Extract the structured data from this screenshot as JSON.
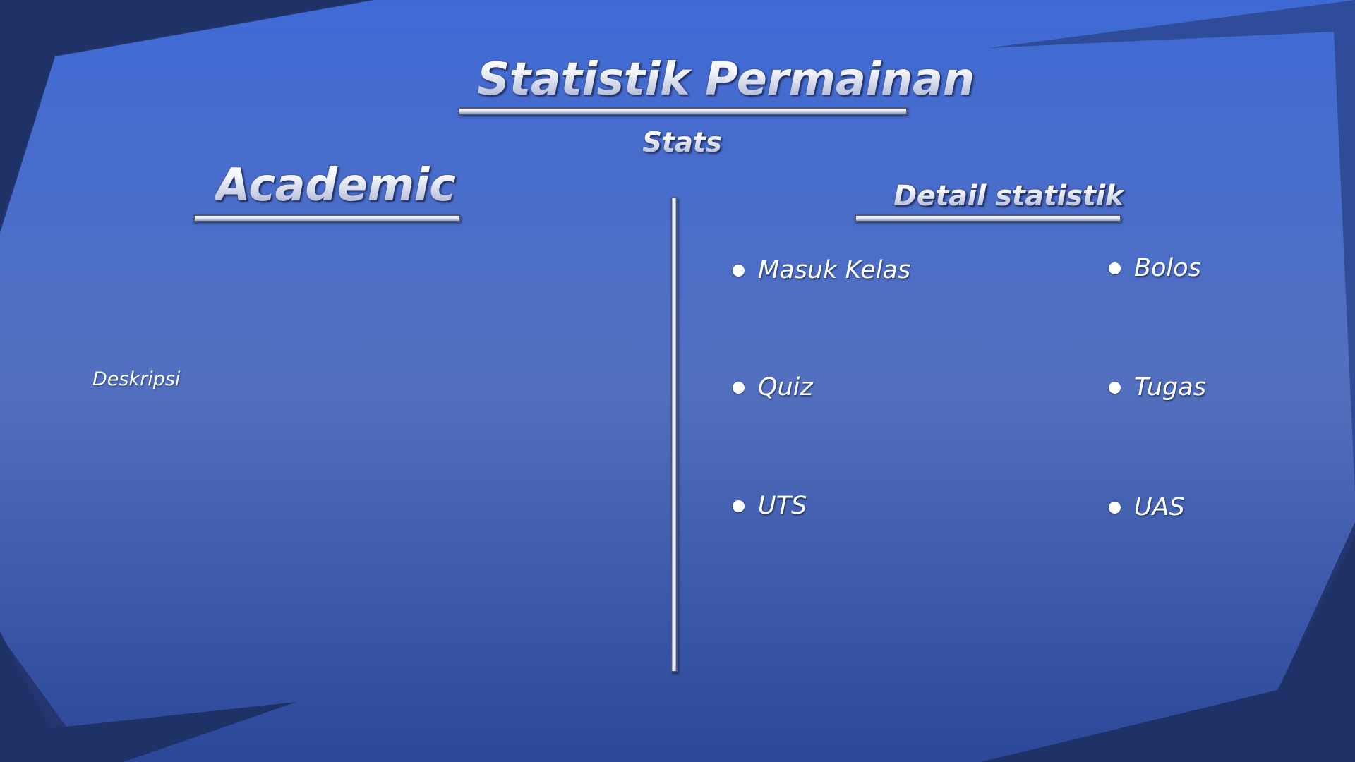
{
  "title": "Statistik Permainan",
  "subtitle": "Stats",
  "academic": {
    "heading": "Academic",
    "description": "Deskripsi"
  },
  "detail": {
    "heading": "Detail statistik",
    "items": [
      "Masuk Kelas",
      "Bolos",
      "Quiz",
      "Tugas",
      "UTS",
      "UAS"
    ]
  },
  "colors": {
    "background_top": "#3f6ad5",
    "background_mid": "#5370bf",
    "background_bottom": "#2b4798",
    "dark_shape": "#1e3268",
    "text": "#ffffff"
  }
}
